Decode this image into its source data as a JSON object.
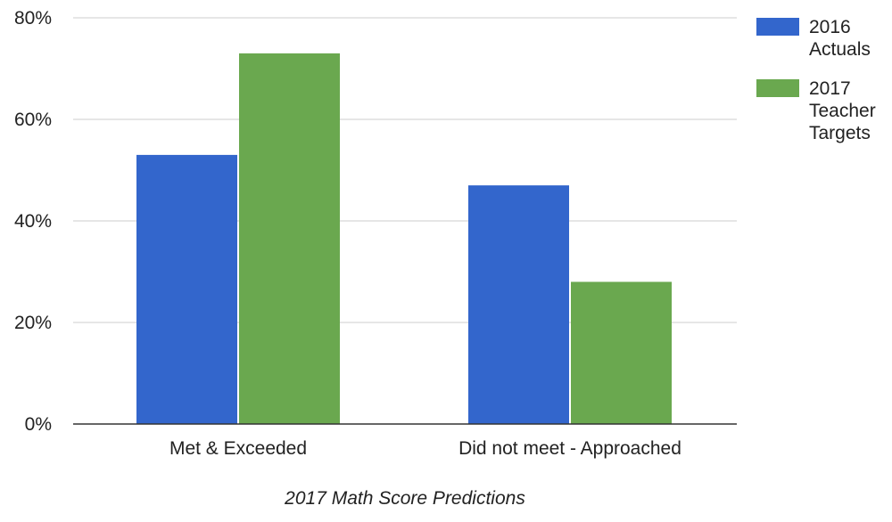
{
  "chart_data": {
    "type": "bar",
    "categories": [
      "Met & Exceeded",
      "Did not meet - Approached"
    ],
    "series": [
      {
        "name": "2016 Actuals",
        "name_lines": [
          "2016",
          "Actuals"
        ],
        "values": [
          53,
          47
        ],
        "color": "#3366cc"
      },
      {
        "name": "2017 Teacher Targets",
        "name_lines": [
          "2017",
          "Teacher",
          "Targets"
        ],
        "values": [
          73,
          28
        ],
        "color": "#6aa84f"
      }
    ],
    "xlabel": "2017 Math Score Predictions",
    "ylabel": "",
    "ylim": [
      0,
      80
    ],
    "yticks": [
      0,
      20,
      40,
      60,
      80
    ],
    "ytick_labels": [
      "0%",
      "20%",
      "40%",
      "60%",
      "80%"
    ],
    "grid": true,
    "legend": "right",
    "colors": {
      "gridline": "#cccccc",
      "baseline": "#333333",
      "text": "#222222"
    }
  }
}
